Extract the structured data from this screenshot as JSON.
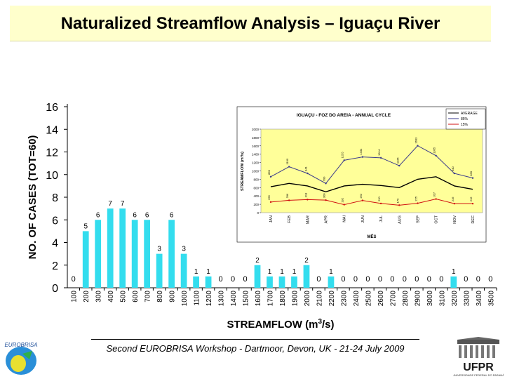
{
  "slide": {
    "title": "Naturalized Streamflow Analysis – Iguaçu River",
    "footer": "Second EUROBRISA Workshop - Dartmoor, Devon, UK - 21-24 July 2009",
    "logo_left": "EUROBRISA",
    "logo_right": "UFPR",
    "logo_right_caption": "UNIVERSIDADE FEDERAL DO PARANÁ"
  },
  "chart_data": [
    {
      "type": "bar",
      "title": "",
      "xlabel": "STREAMFLOW (m³/s)",
      "ylabel": "NO. OF CASES (TOT=60)",
      "ylim": [
        0,
        16
      ],
      "yticks": [
        0,
        2,
        4,
        6,
        8,
        10,
        12,
        14,
        16
      ],
      "categories": [
        "100",
        "200",
        "300",
        "400",
        "500",
        "600",
        "700",
        "800",
        "900",
        "1000",
        "1100",
        "1200",
        "1300",
        "1400",
        "1500",
        "1600",
        "1700",
        "1800",
        "1900",
        "2000",
        "2100",
        "2200",
        "2300",
        "2400",
        "2500",
        "2600",
        "2700",
        "2800",
        "2900",
        "3000",
        "3100",
        "3200",
        "3300",
        "3400",
        "3500"
      ],
      "values": [
        0,
        5,
        6,
        7,
        7,
        6,
        6,
        3,
        6,
        3,
        1,
        1,
        0,
        0,
        0,
        2,
        1,
        1,
        1,
        2,
        0,
        1,
        0,
        0,
        0,
        0,
        0,
        0,
        0,
        0,
        0,
        1,
        0,
        0,
        0
      ],
      "bar_color": "#33ddee"
    },
    {
      "type": "line",
      "title": "IGUAÇU - FOZ DO AREIA - ANNUAL CYCLE",
      "xlabel": "MÊS",
      "ylabel": "STREAMFLOW (m³/s)",
      "ylim": [
        0,
        2000
      ],
      "yticks": [
        0,
        200,
        400,
        600,
        800,
        1000,
        1200,
        1400,
        1600,
        1800,
        2000
      ],
      "categories": [
        "JAN",
        "FEB",
        "MAR",
        "APR",
        "MAI",
        "JUN",
        "JUL",
        "AUG",
        "SEP",
        "OCT",
        "NOV",
        "DEC"
      ],
      "series": [
        {
          "name": "AVERAGE",
          "color": "#000000",
          "values": [
            620,
            700,
            640,
            500,
            640,
            680,
            650,
            600,
            800,
            860,
            640,
            560
          ]
        },
        {
          "name": "85%",
          "color": "#3a3a8c",
          "values": [
            860,
            1100,
            941,
            700,
            1255,
            1334,
            1314,
            1125,
            1603,
            1365,
            940,
            830
          ]
        },
        {
          "name": "15%",
          "color": "#d01010",
          "values": [
            255,
            296,
            313,
            300,
            192,
            292,
            220,
            179,
            225,
            327,
            216,
            216
          ]
        }
      ],
      "point_labels": [
        [
          "860",
          "1100",
          "941",
          "700",
          "1255",
          "1334",
          "1314",
          "1125",
          "1603",
          "1365",
          "940",
          "830"
        ],
        [
          "255",
          "296",
          "313",
          "300",
          "192",
          "292",
          "220",
          "179",
          "225",
          "327",
          "216",
          "216"
        ]
      ]
    }
  ]
}
